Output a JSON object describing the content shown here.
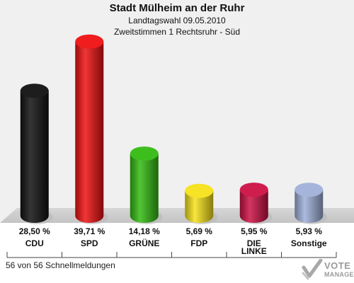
{
  "header": {
    "title": "Stadt Mülheim an der Ruhr",
    "subtitle": "Landtagswahl 09.05.2010",
    "subtitle2": "Zweitstimmen 1 Rechtsruhr - Süd"
  },
  "footer": {
    "note": "56 von 56 Schnellmeldungen"
  },
  "logo": {
    "line1": "VOTE",
    "line2": "MANAGER",
    "icon": "vote-manager-check-icon"
  },
  "chart_data": {
    "type": "bar",
    "title": "Stadt Mülheim an der Ruhr",
    "categories": [
      "CDU",
      "SPD",
      "GRÜNE",
      "FDP",
      "DIE LINKE",
      "Sonstige"
    ],
    "values": [
      28.5,
      39.71,
      14.18,
      5.69,
      5.95,
      5.93
    ],
    "value_labels": [
      "28,50 %",
      "39,71 %",
      "14,18 %",
      "5,69 %",
      "5,95 %",
      "5,93 %"
    ],
    "colors": [
      "#111111",
      "#ee1111",
      "#33bb11",
      "#f5e21a",
      "#cc1144",
      "#9fb0d8"
    ],
    "ylim": [
      0,
      42
    ],
    "grid": false,
    "legend": "none"
  }
}
